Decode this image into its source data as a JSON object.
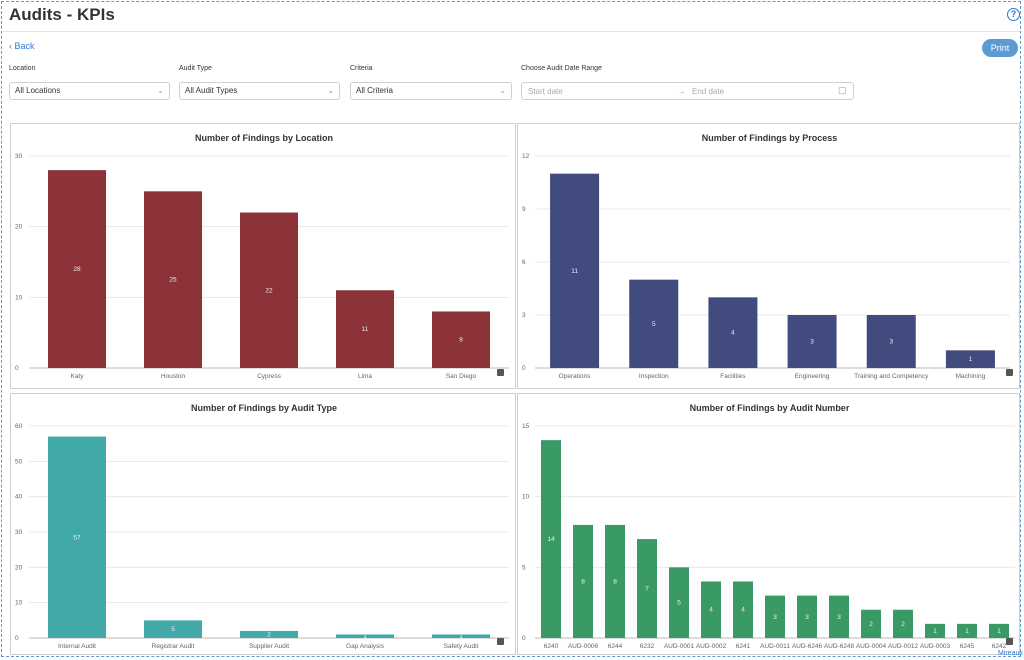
{
  "page": {
    "title": "Audits - KPIs",
    "back_label": "Back",
    "print_label": "Print",
    "corner_text": "Mireaux"
  },
  "icons": {
    "help": "question-circle-icon",
    "back": "chevron-left-icon",
    "chevron": "chevron-down-icon",
    "calendar": "calendar-icon",
    "arrow": "arrow-right-icon"
  },
  "filters": {
    "location": {
      "label": "Location",
      "value": "All Locations"
    },
    "audit_type": {
      "label": "Audit Type",
      "value": "All Audit Types"
    },
    "criteria": {
      "label": "Criteria",
      "value": "All Criteria"
    },
    "date_range": {
      "label": "Choose Audit Date Range",
      "start_placeholder": "Start date",
      "end_placeholder": "End date"
    }
  },
  "chart_data": [
    {
      "type": "bar",
      "title": "Number of Findings by Location",
      "color": "#8b3338",
      "categories": [
        "Katy",
        "Houston",
        "Cypress",
        "Lima",
        "San Diego"
      ],
      "values": [
        28,
        25,
        22,
        11,
        8
      ],
      "ylim": [
        0,
        30
      ],
      "yticks": [
        0,
        10,
        20,
        30
      ],
      "grid": true,
      "legend": "none"
    },
    {
      "type": "bar",
      "title": "Number of Findings by Process",
      "color": "#414b7e",
      "categories": [
        "Operations",
        "Inspection",
        "Facilities",
        "Engineering",
        "Training and Competency",
        "Machining"
      ],
      "values": [
        11,
        5,
        4,
        3,
        3,
        1
      ],
      "ylim": [
        0,
        12
      ],
      "yticks": [
        0,
        3,
        6,
        9,
        12
      ],
      "grid": true,
      "legend": "none"
    },
    {
      "type": "bar",
      "title": "Number of Findings by Audit Type",
      "color": "#41a9a8",
      "categories": [
        "Internal Audit",
        "Registrar Audit",
        "Supplier Audit",
        "Gap Analysis",
        "Safety Audit"
      ],
      "values": [
        57,
        5,
        2,
        1,
        1
      ],
      "ylim": [
        0,
        60
      ],
      "yticks": [
        0,
        10,
        20,
        30,
        40,
        50,
        60
      ],
      "grid": true,
      "legend": "none"
    },
    {
      "type": "bar",
      "title": "Number of Findings by Audit Number",
      "color": "#3a9a66",
      "categories": [
        "6240",
        "AUD-0006",
        "6244",
        "6232",
        "AUD-0001",
        "AUD-0002",
        "6241",
        "AUD-0011",
        "AUD-6246",
        "AUD-6248",
        "AUD-0004",
        "AUD-0012",
        "AUD-0003",
        "6245",
        "6242"
      ],
      "values": [
        14,
        8,
        8,
        7,
        5,
        4,
        4,
        3,
        3,
        3,
        2,
        2,
        1,
        1,
        1
      ],
      "ylim": [
        0,
        15
      ],
      "yticks": [
        0,
        5,
        10,
        15
      ],
      "grid": true,
      "legend": "none"
    }
  ]
}
